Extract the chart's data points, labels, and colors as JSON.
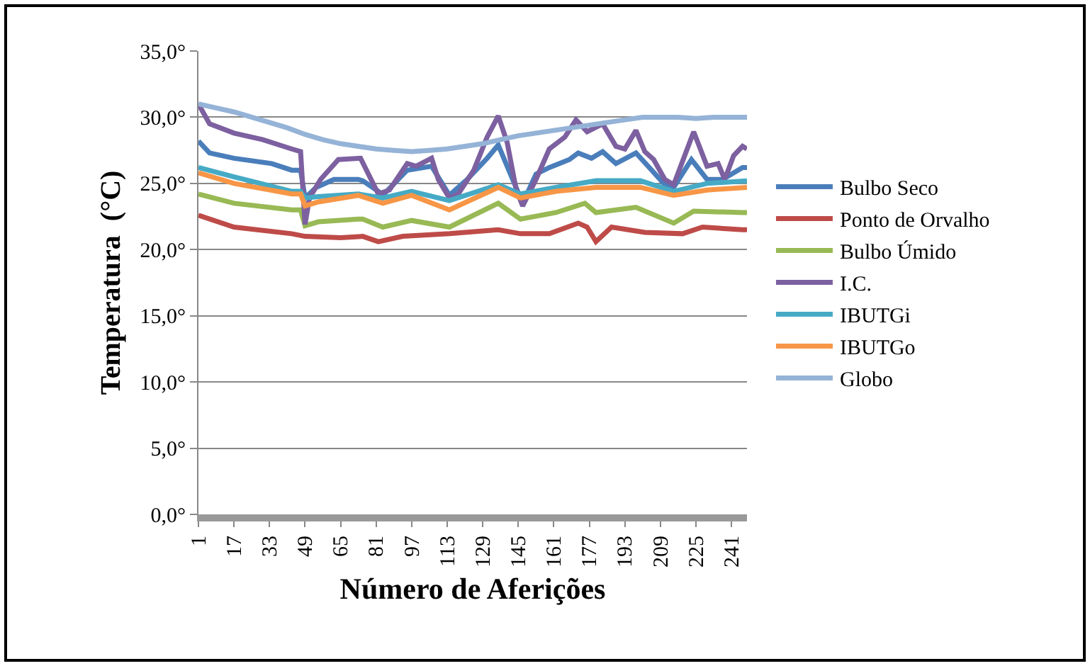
{
  "chart_data": {
    "type": "line",
    "xlabel": "Número de Aferições",
    "ylabel": "Temperatura  (°C)",
    "xlim": [
      1,
      248
    ],
    "xticks": [
      1,
      17,
      33,
      49,
      65,
      81,
      97,
      113,
      129,
      145,
      161,
      177,
      193,
      209,
      225,
      241
    ],
    "ylim": [
      0,
      35
    ],
    "yticks": [
      {
        "value": 0,
        "label": "0,0°"
      },
      {
        "value": 5,
        "label": "5,0°"
      },
      {
        "value": 10,
        "label": "10,0°"
      },
      {
        "value": 15,
        "label": "15,0°"
      },
      {
        "value": 20,
        "label": "20,0°"
      },
      {
        "value": 25,
        "label": "25,0°"
      },
      {
        "value": 30,
        "label": "30,0°"
      },
      {
        "value": 35,
        "label": "35,0°"
      }
    ],
    "grid": "y",
    "legend": "right",
    "marker": "none",
    "line_style": "solid",
    "series": [
      {
        "name": "Bulbo Seco",
        "color": "#4a7ebb",
        "x": [
          1,
          6,
          17,
          34,
          43,
          47,
          49,
          54,
          62,
          73,
          75,
          82,
          84,
          95,
          106,
          114,
          122,
          131,
          136,
          144,
          147,
          153,
          159,
          168,
          172,
          178,
          183,
          189,
          198,
          204,
          211,
          215,
          223,
          230,
          237,
          246,
          248
        ],
        "values": [
          28.2,
          27.3,
          26.9,
          26.5,
          26.0,
          26.0,
          23.9,
          24.7,
          25.3,
          25.3,
          25.2,
          24.4,
          24.1,
          26.0,
          26.3,
          24.1,
          25.3,
          26.9,
          27.9,
          24.7,
          23.5,
          25.7,
          26.2,
          26.8,
          27.3,
          26.9,
          27.4,
          26.5,
          27.3,
          26.2,
          24.9,
          24.7,
          26.8,
          25.3,
          25.3,
          26.2,
          26.2
        ]
      },
      {
        "name": "Ponto de Orvalho",
        "color": "#be4b48",
        "x": [
          1,
          17,
          43,
          49,
          65,
          75,
          82,
          93,
          114,
          136,
          146,
          159,
          172,
          176,
          180,
          187,
          202,
          219,
          228,
          246,
          248
        ],
        "values": [
          22.6,
          21.7,
          21.2,
          21.0,
          20.9,
          21.0,
          20.6,
          21.0,
          21.2,
          21.5,
          21.2,
          21.2,
          22.0,
          21.7,
          20.6,
          21.7,
          21.3,
          21.2,
          21.7,
          21.5,
          21.5
        ]
      },
      {
        "name": "Bulbo Úmido",
        "color": "#98b954",
        "x": [
          1,
          17,
          43,
          47,
          49,
          55,
          73,
          75,
          84,
          97,
          114,
          136,
          146,
          162,
          175,
          180,
          198,
          215,
          224,
          246,
          248
        ],
        "values": [
          24.2,
          23.5,
          23.0,
          23.0,
          21.8,
          22.1,
          22.3,
          22.3,
          21.7,
          22.2,
          21.7,
          23.5,
          22.3,
          22.8,
          23.5,
          22.8,
          23.2,
          22.0,
          22.9,
          22.8,
          22.8
        ]
      },
      {
        "name": "I.C.",
        "color": "#7d60a0",
        "x": [
          1,
          6,
          17,
          30,
          43,
          47,
          49,
          51,
          56,
          64,
          74,
          82,
          87,
          95,
          99,
          106,
          109,
          114,
          118,
          125,
          131,
          136,
          140,
          144,
          147,
          153,
          159,
          166,
          171,
          176,
          183,
          189,
          193,
          198,
          202,
          206,
          211,
          215,
          224,
          230,
          235,
          238,
          242,
          246,
          248
        ],
        "values": [
          31.0,
          29.5,
          28.8,
          28.3,
          27.6,
          27.4,
          21.9,
          23.9,
          25.3,
          26.8,
          26.9,
          24.2,
          24.5,
          26.5,
          26.3,
          26.9,
          25.3,
          23.9,
          24.2,
          26.0,
          28.5,
          30.1,
          28.1,
          24.6,
          23.3,
          25.3,
          27.6,
          28.5,
          29.8,
          28.9,
          29.5,
          27.8,
          27.6,
          29.0,
          27.4,
          26.8,
          25.3,
          24.9,
          28.9,
          26.3,
          26.5,
          25.3,
          27.1,
          27.8,
          27.6
        ]
      },
      {
        "name": "IBUTGi",
        "color": "#46aac5",
        "x": [
          1,
          17,
          43,
          47,
          49,
          55,
          73,
          84,
          97,
          114,
          136,
          146,
          162,
          180,
          200,
          215,
          230,
          248
        ],
        "values": [
          26.2,
          25.5,
          24.4,
          24.4,
          23.9,
          24.0,
          24.2,
          23.9,
          24.4,
          23.7,
          24.9,
          24.2,
          24.7,
          25.2,
          25.2,
          24.4,
          25.0,
          25.2
        ]
      },
      {
        "name": "IBUTGo",
        "color": "#f79646",
        "x": [
          1,
          17,
          43,
          47,
          49,
          55,
          73,
          84,
          97,
          114,
          136,
          146,
          162,
          180,
          200,
          215,
          230,
          248
        ],
        "values": [
          25.8,
          25.0,
          24.2,
          24.2,
          23.3,
          23.6,
          24.1,
          23.5,
          24.1,
          23.0,
          24.7,
          23.9,
          24.4,
          24.7,
          24.7,
          24.1,
          24.5,
          24.7
        ]
      },
      {
        "name": "Globo",
        "color": "#95b3d7",
        "x": [
          1,
          9,
          17,
          25,
          33,
          41,
          49,
          57,
          65,
          73,
          81,
          89,
          97,
          105,
          113,
          121,
          129,
          137,
          145,
          153,
          161,
          169,
          177,
          185,
          193,
          201,
          209,
          217,
          225,
          233,
          241,
          248
        ],
        "values": [
          31.0,
          30.7,
          30.4,
          30.0,
          29.6,
          29.2,
          28.7,
          28.3,
          28.0,
          27.8,
          27.6,
          27.5,
          27.4,
          27.5,
          27.6,
          27.8,
          28.0,
          28.3,
          28.6,
          28.8,
          29.0,
          29.2,
          29.4,
          29.6,
          29.8,
          30.0,
          30.0,
          30.0,
          29.9,
          30.0,
          30.0,
          30.0
        ]
      }
    ]
  }
}
